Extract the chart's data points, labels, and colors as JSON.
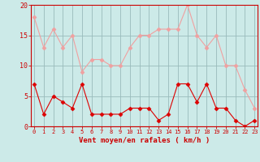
{
  "hours": [
    0,
    1,
    2,
    3,
    4,
    5,
    6,
    7,
    8,
    9,
    10,
    11,
    12,
    13,
    14,
    15,
    16,
    17,
    18,
    19,
    20,
    21,
    22,
    23
  ],
  "wind_avg": [
    7,
    2,
    5,
    4,
    3,
    7,
    2,
    2,
    2,
    2,
    3,
    3,
    3,
    1,
    2,
    7,
    7,
    4,
    7,
    3,
    3,
    1,
    0,
    1
  ],
  "wind_gust": [
    18,
    13,
    16,
    13,
    15,
    9,
    11,
    11,
    10,
    10,
    13,
    15,
    15,
    16,
    16,
    16,
    20,
    15,
    13,
    15,
    10,
    10,
    6,
    3
  ],
  "line_avg_color": "#dd0000",
  "line_gust_color": "#f0a0a0",
  "bg_color": "#cceae8",
  "grid_color": "#99bbbb",
  "axis_label_color": "#cc0000",
  "tick_color": "#cc0000",
  "xlabel": "Vent moyen/en rafales ( km/h )",
  "ylim": [
    0,
    20
  ],
  "yticks": [
    0,
    5,
    10,
    15,
    20
  ],
  "marker_avg": "D",
  "marker_gust": "D",
  "marker_size": 2.5,
  "linewidth": 0.8
}
